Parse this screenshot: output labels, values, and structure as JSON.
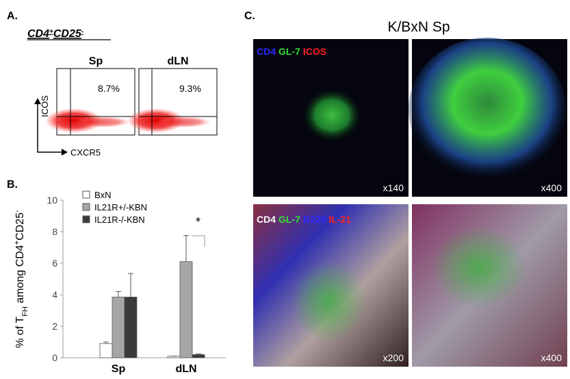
{
  "panel_a": {
    "label": "A.",
    "title": [
      "CD4",
      "+",
      "CD25",
      "-"
    ],
    "plots": [
      {
        "name": "Sp",
        "percent": "8.7%"
      },
      {
        "name": "dLN",
        "percent": "9.3%"
      }
    ],
    "y_axis": "ICOS",
    "x_axis": "CXCR5"
  },
  "chart_data": {
    "type": "bar",
    "label": "B.",
    "y_label": [
      "% of T",
      "FH",
      " among CD4",
      "+",
      "CD25",
      "-"
    ],
    "categories": [
      "Sp",
      "dLN"
    ],
    "series": [
      {
        "name": "BxN",
        "color": "#ffffff",
        "values": [
          0.9,
          0.1
        ],
        "errors": [
          0.1,
          0
        ]
      },
      {
        "name": "IL21R+/-KBN",
        "color": "#a6a6a6",
        "values": [
          3.85,
          6.1
        ],
        "errors": [
          0.35,
          1.65
        ]
      },
      {
        "name": "IL21R-/-KBN",
        "color": "#3a3a3a",
        "values": [
          3.85,
          0.2
        ],
        "errors": [
          1.5,
          0.05
        ]
      }
    ],
    "ylim": [
      0,
      10
    ],
    "yticks": [
      0,
      2,
      4,
      6,
      8,
      10
    ],
    "annotation": "*"
  },
  "panel_c": {
    "label": "C.",
    "title": "K/BxN Sp",
    "top_stain": [
      {
        "text": "CD4",
        "color": "#2a2aff"
      },
      {
        "text": "GL-7",
        "color": "#33dd33"
      },
      {
        "text": "ICOS",
        "color": "#ff2020"
      }
    ],
    "bottom_stain": [
      {
        "text": "CD4",
        "color": "#ffffff"
      },
      {
        "text": "GL-7",
        "color": "#33dd33"
      },
      {
        "text": "B220",
        "color": "#2a2aff"
      },
      {
        "text": "IL-21",
        "color": "#ff2020"
      }
    ],
    "magnifications": [
      "x140",
      "x400",
      "x200",
      "x400"
    ]
  }
}
